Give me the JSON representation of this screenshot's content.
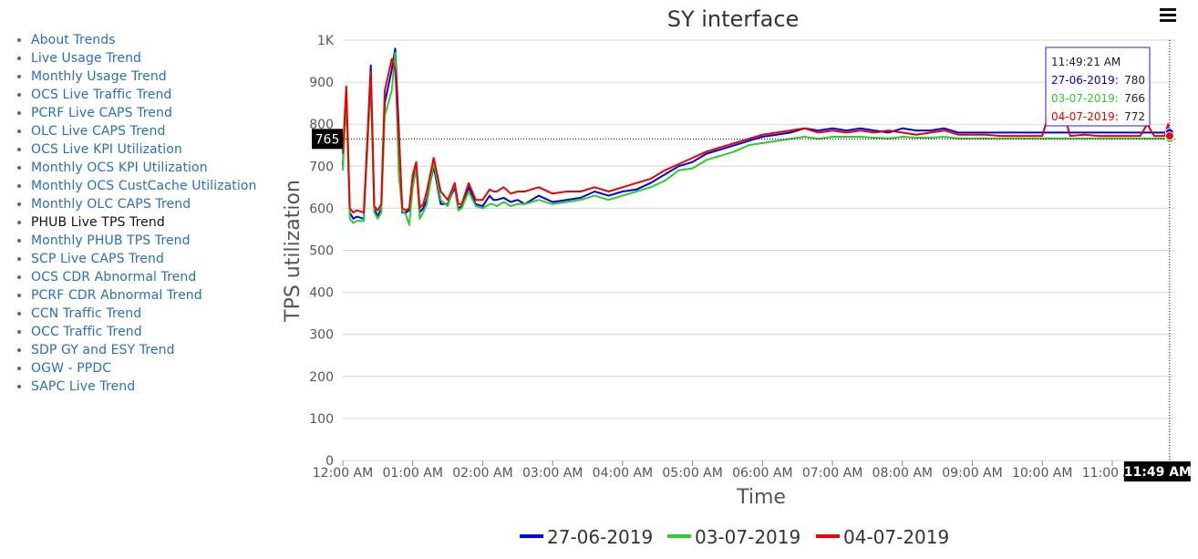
{
  "nav": {
    "items": [
      {
        "label": "About Trends",
        "active": false
      },
      {
        "label": "Live Usage Trend",
        "active": false
      },
      {
        "label": "Monthly Usage Trend",
        "active": false
      },
      {
        "label": "OCS Live Traffic Trend",
        "active": false
      },
      {
        "label": "PCRF Live CAPS Trend",
        "active": false
      },
      {
        "label": "OLC Live CAPS Trend",
        "active": false
      },
      {
        "label": "OCS Live KPI Utilization",
        "active": false
      },
      {
        "label": "Monthly OCS KPI Utilization",
        "active": false
      },
      {
        "label": "Monthly OCS CustCache Utilization",
        "active": false
      },
      {
        "label": "Monthly OLC CAPS Trend",
        "active": false
      },
      {
        "label": "PHUB Live TPS Trend",
        "active": true
      },
      {
        "label": "Monthly PHUB TPS Trend",
        "active": false
      },
      {
        "label": "SCP Live CAPS Trend",
        "active": false
      },
      {
        "label": "OCS CDR Abnormal Trend",
        "active": false
      },
      {
        "label": "PCRF CDR Abnormal Trend",
        "active": false
      },
      {
        "label": "CCN Traffic Trend",
        "active": false
      },
      {
        "label": "OCC Traffic Trend",
        "active": false
      },
      {
        "label": "SDP GY and ESY Trend",
        "active": false
      },
      {
        "label": "OGW - PPDC",
        "active": false
      },
      {
        "label": "SAPC Live Trend",
        "active": false
      }
    ]
  },
  "chart_data": {
    "type": "line",
    "title": "SY interface",
    "xlabel": "Time",
    "ylabel": "TPS utilization",
    "ylim": [
      0,
      1000
    ],
    "yticks": [
      "0",
      "100",
      "200",
      "300",
      "400",
      "500",
      "600",
      "700",
      "800",
      "900",
      "1K"
    ],
    "xlim_hours": [
      0,
      11.9
    ],
    "xticks": [
      "12:00 AM",
      "01:00 AM",
      "02:00 AM",
      "03:00 AM",
      "04:00 AM",
      "05:00 AM",
      "06:00 AM",
      "07:00 AM",
      "08:00 AM",
      "09:00 AM",
      "10:00 AM",
      "11:00 AM"
    ],
    "grid": true,
    "legend_position": "bottom",
    "x_hours": [
      0,
      0.05,
      0.1,
      0.15,
      0.2,
      0.3,
      0.4,
      0.45,
      0.5,
      0.55,
      0.6,
      0.7,
      0.75,
      0.8,
      0.85,
      0.9,
      0.95,
      1.0,
      1.05,
      1.1,
      1.15,
      1.2,
      1.3,
      1.4,
      1.5,
      1.6,
      1.65,
      1.7,
      1.8,
      1.9,
      2.0,
      2.1,
      2.15,
      2.2,
      2.3,
      2.4,
      2.5,
      2.6,
      2.7,
      2.8,
      3.0,
      3.2,
      3.4,
      3.6,
      3.8,
      4.0,
      4.2,
      4.4,
      4.6,
      4.8,
      5.0,
      5.2,
      5.4,
      5.6,
      5.8,
      6.0,
      6.2,
      6.4,
      6.6,
      6.8,
      7.0,
      7.2,
      7.4,
      7.6,
      7.8,
      8.0,
      8.2,
      8.4,
      8.6,
      8.8,
      9.0,
      9.2,
      9.4,
      9.6,
      9.8,
      10.0,
      10.2,
      10.4,
      10.6,
      10.8,
      11.0,
      11.2,
      11.4,
      11.5,
      11.6,
      11.7,
      11.75,
      11.8,
      11.82
    ],
    "series": [
      {
        "name": "27-06-2019",
        "color": "#0000e0",
        "values": [
          700,
          880,
          590,
          575,
          580,
          575,
          940,
          600,
          580,
          600,
          850,
          930,
          980,
          790,
          590,
          590,
          595,
          660,
          700,
          590,
          600,
          620,
          700,
          610,
          610,
          650,
          600,
          605,
          650,
          610,
          605,
          630,
          620,
          620,
          625,
          615,
          620,
          610,
          620,
          630,
          615,
          620,
          625,
          640,
          630,
          640,
          645,
          660,
          680,
          700,
          710,
          730,
          740,
          750,
          760,
          770,
          775,
          780,
          790,
          785,
          790,
          785,
          790,
          785,
          780,
          790,
          785,
          785,
          790,
          780,
          780,
          780,
          780,
          780,
          780,
          780,
          780,
          780,
          780,
          780,
          780,
          780,
          780,
          780,
          780,
          780,
          780,
          785,
          780
        ]
      },
      {
        "name": "03-07-2019",
        "color": "#2ecc2e",
        "values": [
          690,
          860,
          575,
          565,
          570,
          570,
          900,
          590,
          575,
          590,
          820,
          880,
          970,
          680,
          595,
          585,
          560,
          650,
          695,
          575,
          590,
          610,
          710,
          620,
          605,
          660,
          595,
          600,
          640,
          605,
          600,
          610,
          610,
          605,
          615,
          605,
          610,
          610,
          615,
          620,
          610,
          615,
          620,
          630,
          620,
          630,
          640,
          650,
          665,
          690,
          695,
          715,
          725,
          735,
          750,
          755,
          760,
          765,
          770,
          765,
          770,
          770,
          770,
          768,
          766,
          770,
          768,
          768,
          770,
          766,
          766,
          766,
          766,
          766,
          766,
          766,
          766,
          766,
          766,
          766,
          766,
          766,
          766,
          766,
          766,
          766,
          766,
          766,
          766
        ]
      },
      {
        "name": "04-07-2019",
        "color": "#ee0000",
        "values": [
          730,
          890,
          600,
          590,
          595,
          590,
          925,
          605,
          595,
          610,
          880,
          955,
          930,
          770,
          600,
          595,
          600,
          680,
          710,
          600,
          610,
          640,
          720,
          640,
          620,
          660,
          610,
          610,
          660,
          620,
          620,
          645,
          640,
          640,
          650,
          635,
          640,
          640,
          645,
          650,
          635,
          640,
          640,
          650,
          640,
          650,
          660,
          670,
          690,
          705,
          720,
          735,
          745,
          755,
          765,
          775,
          780,
          785,
          790,
          780,
          785,
          780,
          785,
          780,
          785,
          780,
          775,
          780,
          785,
          775,
          775,
          775,
          772,
          772,
          772,
          772,
          885,
          772,
          775,
          772,
          772,
          772,
          772,
          800,
          772,
          772,
          772,
          800,
          772
        ]
      }
    ],
    "crosshair": {
      "y_value": 765,
      "y_label": "765",
      "x_label": "11:49 AM",
      "x_hour": 11.82
    },
    "tooltip": {
      "time": "11:49:21 AM",
      "rows": [
        {
          "label": "27-06-2019:",
          "value": "780",
          "color": "#0000e0"
        },
        {
          "label": "03-07-2019:",
          "value": "766",
          "color": "#2ecc2e"
        },
        {
          "label": "04-07-2019:",
          "value": "772",
          "color": "#ee0000"
        }
      ]
    }
  }
}
